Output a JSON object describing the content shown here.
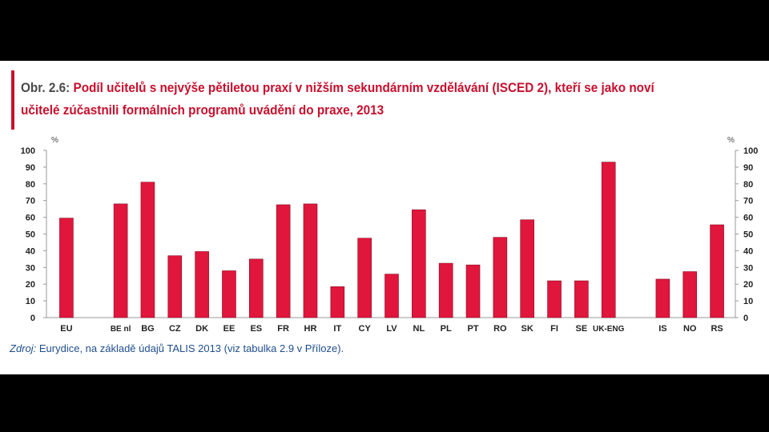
{
  "title": {
    "prefix": "Obr. 2.6:",
    "text": "Podíl učitelů s nejvýše pětiletou praxí v nižším sekundárním vzdělávání (ISCED 2), kteří se jako noví učitelé zúčastnili formálních programů uvádění do praxe, 2013"
  },
  "source": {
    "label": "Zdroj:",
    "text": "Eurydice, na základě údajů TALIS 2013 (viz tabulka 2.9 v Příloze)."
  },
  "colors": {
    "bar": "#e0163c",
    "bar_edge": "#8a0a1f",
    "title": "#c8102e",
    "source": "#1f4e8c"
  },
  "chart_data": {
    "type": "bar",
    "title": "",
    "xlabel": "",
    "ylabel": "%",
    "ylabel_right": "%",
    "ylim": [
      0,
      100
    ],
    "yticks": [
      0,
      10,
      20,
      30,
      40,
      50,
      60,
      70,
      80,
      90,
      100
    ],
    "grid": false,
    "categories": [
      "EU",
      "",
      "BE nl",
      "BG",
      "CZ",
      "DK",
      "EE",
      "ES",
      "FR",
      "HR",
      "IT",
      "CY",
      "LV",
      "NL",
      "PL",
      "PT",
      "RO",
      "SK",
      "FI",
      "SE",
      "UK-ENG",
      "",
      "IS",
      "NO",
      "RS"
    ],
    "values": [
      59.5,
      null,
      68,
      81,
      37,
      39.5,
      28,
      35,
      67.5,
      68,
      18.5,
      47.5,
      26,
      64.5,
      32.5,
      31.5,
      48,
      58.5,
      22,
      22,
      93,
      null,
      23,
      27.5,
      55.5
    ]
  }
}
